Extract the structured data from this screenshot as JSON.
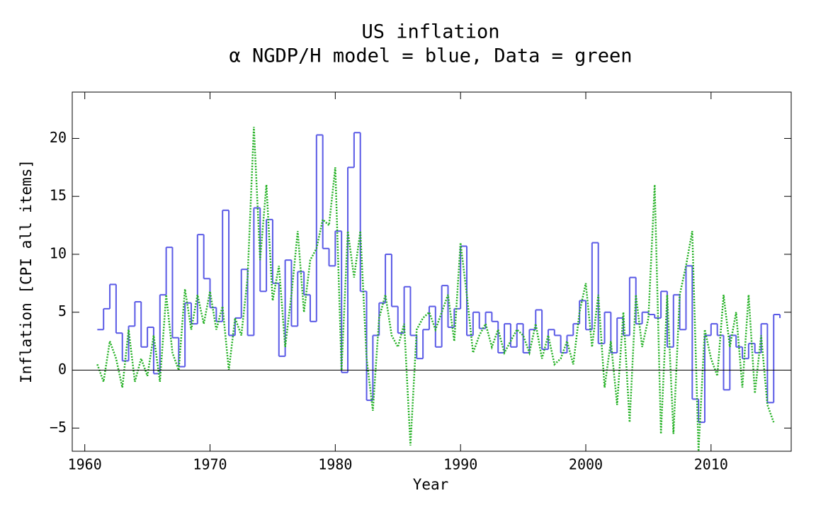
{
  "chart_data": {
    "type": "line",
    "title": "US inflation",
    "subtitle": "α NGDP/H model  = blue, Data = green",
    "x_label": "Year",
    "y_label": "Inflation [CPI all items]",
    "xlim": [
      1959,
      2016.4
    ],
    "ylim": [
      -7,
      24
    ],
    "xticks": [
      1960,
      1970,
      1980,
      1990,
      2000,
      2010
    ],
    "yticks": [
      {
        "value": -5,
        "label": "−5"
      },
      0,
      5,
      10,
      15,
      20
    ],
    "hline": 0,
    "x": [
      1961,
      1961.5,
      1962,
      1962.5,
      1963,
      1963.5,
      1964,
      1964.5,
      1965,
      1965.5,
      1966,
      1966.5,
      1967,
      1967.5,
      1968,
      1968.5,
      1969,
      1969.5,
      1970,
      1970.5,
      1971,
      1971.5,
      1972,
      1972.5,
      1973,
      1973.5,
      1974,
      1974.5,
      1975,
      1975.5,
      1976,
      1976.5,
      1977,
      1977.5,
      1978,
      1978.5,
      1979,
      1979.5,
      1980,
      1980.5,
      1981,
      1981.5,
      1982,
      1982.5,
      1983,
      1983.5,
      1984,
      1984.5,
      1985,
      1985.5,
      1986,
      1986.5,
      1987,
      1987.5,
      1988,
      1988.5,
      1989,
      1989.5,
      1990,
      1990.5,
      1991,
      1991.5,
      1992,
      1992.5,
      1993,
      1993.5,
      1994,
      1994.5,
      1995,
      1995.5,
      1996,
      1996.5,
      1997,
      1997.5,
      1998,
      1998.5,
      1999,
      1999.5,
      2000,
      2000.5,
      2001,
      2001.5,
      2002,
      2002.5,
      2003,
      2003.5,
      2004,
      2004.5,
      2005,
      2005.5,
      2006,
      2006.5,
      2007,
      2007.5,
      2008,
      2008.5,
      2009,
      2009.5,
      2010,
      2010.5,
      2011,
      2011.5,
      2012,
      2012.5,
      2013,
      2013.5,
      2014,
      2014.5,
      2015,
      2015.5
    ],
    "series": [
      {
        "name": "α NGDP/H model",
        "color": "#5a5ae6",
        "step": true,
        "values": [
          3.5,
          5.3,
          7.4,
          3.2,
          0.8,
          3.8,
          5.9,
          2.0,
          3.7,
          -0.3,
          6.5,
          10.6,
          2.8,
          0.3,
          5.8,
          4.0,
          11.7,
          7.9,
          5.4,
          4.2,
          13.8,
          3.0,
          4.5,
          8.7,
          3.0,
          14.0,
          6.8,
          13.0,
          7.5,
          1.2,
          9.5,
          3.8,
          8.5,
          6.5,
          4.2,
          20.3,
          10.5,
          9.0,
          12.0,
          -0.2,
          17.5,
          20.5,
          6.8,
          -2.6,
          3.0,
          5.8,
          10.0,
          5.5,
          3.2,
          7.2,
          3.0,
          1.0,
          3.5,
          5.5,
          2.0,
          7.3,
          3.7,
          5.3,
          10.7,
          3.0,
          5.0,
          3.6,
          5.0,
          4.2,
          1.5,
          4.0,
          2.0,
          4.0,
          1.5,
          3.5,
          5.2,
          1.8,
          3.5,
          3.0,
          1.5,
          3.0,
          4.0,
          6.0,
          3.5,
          11.0,
          2.3,
          5.0,
          1.5,
          4.5,
          3.0,
          8.0,
          4.0,
          5.0,
          4.8,
          4.5,
          6.8,
          2.0,
          6.5,
          3.5,
          9.0,
          -2.5,
          -4.5,
          3.0,
          4.0,
          3.0,
          -1.7,
          3.0,
          2.0,
          1.0,
          2.3,
          1.5,
          4.0,
          -2.8,
          4.8,
          4.5
        ]
      },
      {
        "name": "Data",
        "color": "#22b022",
        "dash": true,
        "values": [
          0.5,
          -1.0,
          2.5,
          1.0,
          -1.5,
          3.5,
          -1.0,
          1.0,
          -0.5,
          3.0,
          -1.0,
          6.5,
          1.5,
          0.0,
          7.0,
          3.5,
          6.5,
          4.0,
          6.8,
          3.5,
          5.5,
          0.0,
          4.5,
          3.0,
          8.0,
          21.0,
          9.5,
          16.0,
          6.0,
          9.0,
          2.0,
          6.5,
          12.0,
          5.0,
          9.5,
          10.5,
          13.0,
          12.5,
          17.5,
          0.0,
          12.0,
          8.0,
          12.0,
          1.0,
          -3.5,
          4.5,
          6.5,
          3.0,
          2.0,
          4.0,
          -6.5,
          3.5,
          4.5,
          5.0,
          3.5,
          5.0,
          6.5,
          2.5,
          11.0,
          6.5,
          1.5,
          3.0,
          4.0,
          2.0,
          3.5,
          1.5,
          2.5,
          3.5,
          3.0,
          1.5,
          4.0,
          1.0,
          3.0,
          0.5,
          1.0,
          2.5,
          0.5,
          5.0,
          7.5,
          2.0,
          6.5,
          -1.5,
          2.5,
          -3.0,
          5.0,
          -4.5,
          6.5,
          2.0,
          4.5,
          16.0,
          -5.5,
          6.5,
          -5.5,
          6.5,
          9.0,
          12.0,
          -7.0,
          3.5,
          1.0,
          -0.5,
          6.5,
          2.0,
          5.0,
          -1.5,
          6.5,
          -2.0,
          3.0,
          -3.0,
          -4.5,
          null
        ]
      }
    ]
  }
}
